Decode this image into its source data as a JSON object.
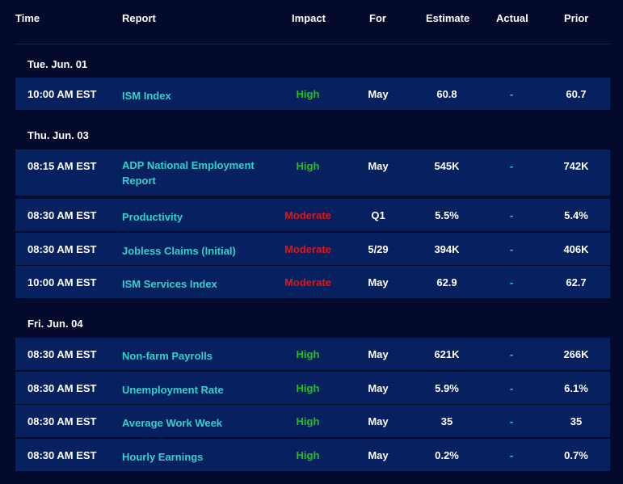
{
  "columns": {
    "time": "Time",
    "report": "Report",
    "impact": "Impact",
    "for": "For",
    "estimate": "Estimate",
    "actual": "Actual",
    "prior": "Prior"
  },
  "days": [
    {
      "date": "Tue. Jun. 01",
      "rows": [
        {
          "time": "10:00 AM EST",
          "report": "ISM Index",
          "impact": "High",
          "for": "May",
          "estimate": "60.8",
          "actual": "-",
          "prior": "60.7"
        }
      ]
    },
    {
      "date": "Thu. Jun. 03",
      "rows": [
        {
          "time": "08:15 AM EST",
          "report": "ADP National Employment Report",
          "impact": "High",
          "for": "May",
          "estimate": "545K",
          "actual": "-",
          "prior": "742K"
        },
        {
          "time": "08:30 AM EST",
          "report": "Productivity",
          "impact": "Moderate",
          "for": "Q1",
          "estimate": "5.5%",
          "actual": "-",
          "prior": "5.4%"
        },
        {
          "time": "08:30 AM EST",
          "report": "Jobless Claims (Initial)",
          "impact": "Moderate",
          "for": "5/29",
          "estimate": "394K",
          "actual": "-",
          "prior": "406K"
        },
        {
          "time": "10:00 AM EST",
          "report": "ISM Services Index",
          "impact": "Moderate",
          "for": "May",
          "estimate": "62.9",
          "actual": "-",
          "prior": "62.7"
        }
      ]
    },
    {
      "date": "Fri. Jun. 04",
      "rows": [
        {
          "time": "08:30 AM EST",
          "report": "Non-farm Payrolls",
          "impact": "High",
          "for": "May",
          "estimate": "621K",
          "actual": "-",
          "prior": "266K"
        },
        {
          "time": "08:30 AM EST",
          "report": "Unemployment Rate",
          "impact": "High",
          "for": "May",
          "estimate": "5.9%",
          "actual": "-",
          "prior": "6.1%"
        },
        {
          "time": "08:30 AM EST",
          "report": "Average Work Week",
          "impact": "High",
          "for": "May",
          "estimate": "35",
          "actual": "-",
          "prior": "35"
        },
        {
          "time": "08:30 AM EST",
          "report": "Hourly Earnings",
          "impact": "High",
          "for": "May",
          "estimate": "0.2%",
          "actual": "-",
          "prior": "0.7%"
        }
      ]
    }
  ],
  "colors": {
    "background": "#030a2c",
    "row_background": "#07205f",
    "report_text": "#31d2cc",
    "impact_high": "#1fc21f",
    "impact_moderate": "#e01515"
  }
}
